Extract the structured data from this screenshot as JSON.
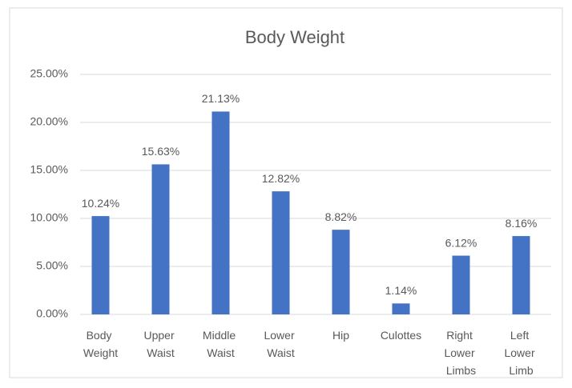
{
  "chart_data": {
    "type": "bar",
    "title": "Body Weight",
    "categories": [
      "Body Weight",
      "Upper Waist",
      "Middle Waist",
      "Lower Waist",
      "Hip",
      "Culottes",
      "Right Lower Limbs",
      "Left Lower Limb"
    ],
    "values": [
      10.24,
      15.63,
      21.13,
      12.82,
      8.82,
      1.14,
      6.12,
      8.16
    ],
    "value_labels": [
      "10.24%",
      "15.63%",
      "21.13%",
      "12.82%",
      "8.82%",
      "1.14%",
      "6.12%",
      "8.16%"
    ],
    "color": "#4472c4",
    "ylim": [
      0,
      25
    ],
    "yticks": [
      {
        "value": 0,
        "label": "0.00%"
      },
      {
        "value": 5,
        "label": "5.00%"
      },
      {
        "value": 10,
        "label": "10.00%"
      },
      {
        "value": 15,
        "label": "15.00%"
      },
      {
        "value": 20,
        "label": "20.00%"
      },
      {
        "value": 25,
        "label": "25.00%"
      }
    ],
    "grid": true
  }
}
